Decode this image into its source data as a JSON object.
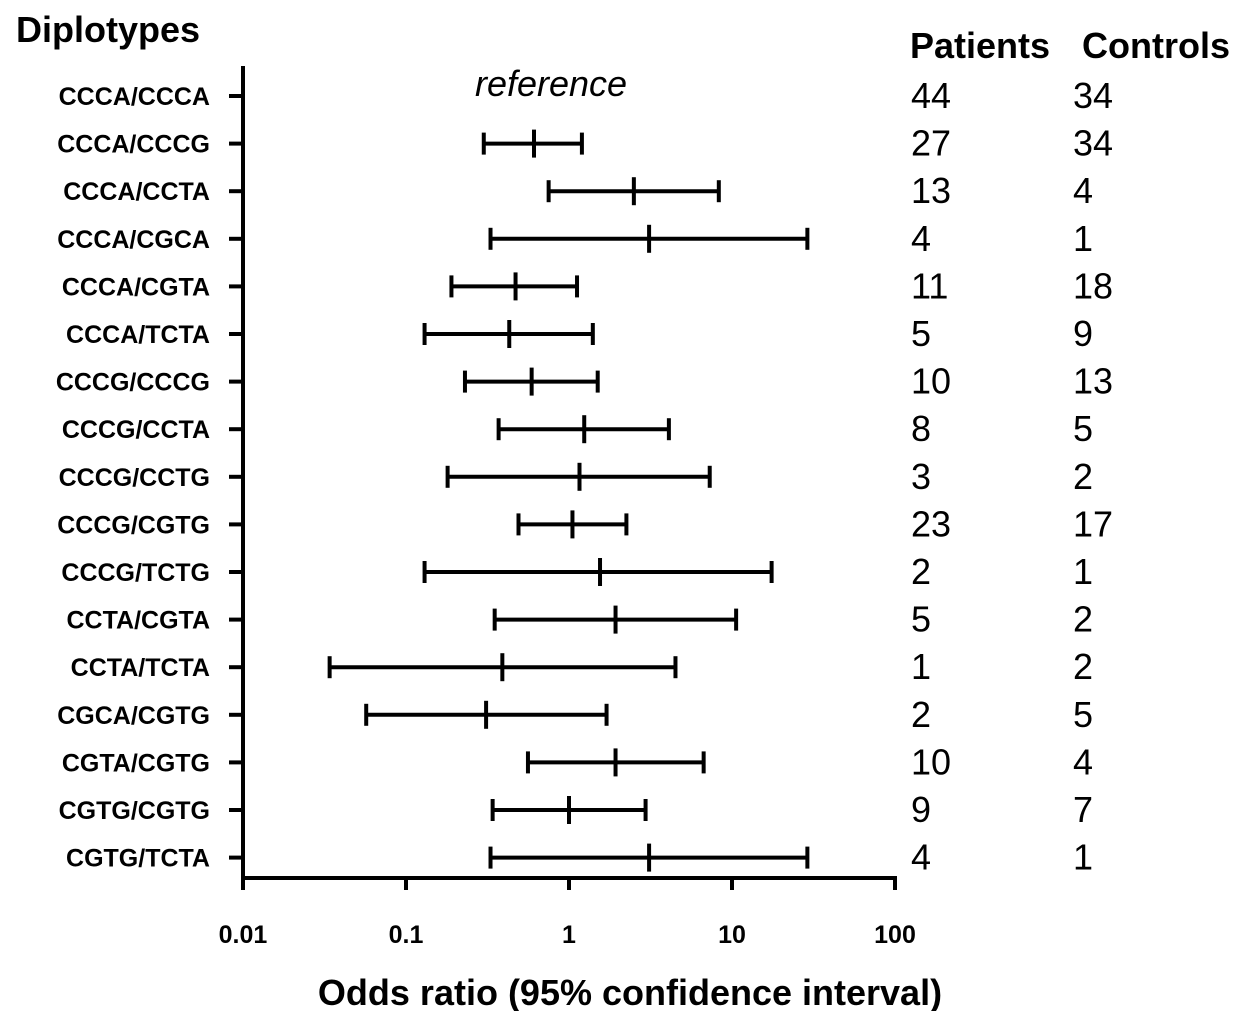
{
  "chart_data": {
    "type": "forest",
    "title": "Diplotypes",
    "xlabel": "Odds ratio (95% confidence interval)",
    "x_scale": "log",
    "xlim": [
      0.01,
      100
    ],
    "x_ticks": [
      "0.01",
      "0.1",
      "1",
      "10",
      "100"
    ],
    "table_headers": {
      "patients": "Patients",
      "controls": "Controls"
    },
    "reference_label": "reference",
    "rows": [
      {
        "label": "CCCA/CCCA",
        "reference": true,
        "patients": "44",
        "controls": "34"
      },
      {
        "label": "CCCA/CCCG",
        "or": 0.61,
        "lower": 0.3,
        "upper": 1.2,
        "patients": "27",
        "controls": "34"
      },
      {
        "label": "CCCA/CCTA",
        "or": 2.5,
        "lower": 0.75,
        "upper": 8.3,
        "patients": "13",
        "controls": "4"
      },
      {
        "label": "CCCA/CGCA",
        "or": 3.1,
        "lower": 0.33,
        "upper": 29,
        "patients": "4",
        "controls": "1"
      },
      {
        "label": "CCCA/CGTA",
        "or": 0.47,
        "lower": 0.19,
        "upper": 1.12,
        "patients": "11",
        "controls": "18"
      },
      {
        "label": "CCCA/TCTA",
        "or": 0.43,
        "lower": 0.13,
        "upper": 1.4,
        "patients": "5",
        "controls": "9"
      },
      {
        "label": "CCCG/CCCG",
        "or": 0.59,
        "lower": 0.23,
        "upper": 1.5,
        "patients": "10",
        "controls": "13"
      },
      {
        "label": "CCCG/CCTA",
        "or": 1.24,
        "lower": 0.37,
        "upper": 4.1,
        "patients": "8",
        "controls": "5"
      },
      {
        "label": "CCCG/CCTG",
        "or": 1.16,
        "lower": 0.18,
        "upper": 7.3,
        "patients": "3",
        "controls": "2"
      },
      {
        "label": "CCCG/CGTG",
        "or": 1.05,
        "lower": 0.49,
        "upper": 2.25,
        "patients": "23",
        "controls": "17"
      },
      {
        "label": "CCCG/TCTG",
        "or": 1.55,
        "lower": 0.13,
        "upper": 17.5,
        "patients": "2",
        "controls": "1"
      },
      {
        "label": "CCTA/CGTA",
        "or": 1.93,
        "lower": 0.35,
        "upper": 10.6,
        "patients": "5",
        "controls": "2"
      },
      {
        "label": "CCTA/TCTA",
        "or": 0.39,
        "lower": 0.034,
        "upper": 4.5,
        "patients": "1",
        "controls": "2"
      },
      {
        "label": "CGCA/CGTG",
        "or": 0.31,
        "lower": 0.057,
        "upper": 1.7,
        "patients": "2",
        "controls": "5"
      },
      {
        "label": "CGTA/CGTG",
        "or": 1.93,
        "lower": 0.56,
        "upper": 6.7,
        "patients": "10",
        "controls": "4"
      },
      {
        "label": "CGTG/CGTG",
        "or": 1.0,
        "lower": 0.34,
        "upper": 2.95,
        "patients": "9",
        "controls": "7"
      },
      {
        "label": "CGTG/TCTA",
        "or": 3.1,
        "lower": 0.33,
        "upper": 29,
        "patients": "4",
        "controls": "1"
      }
    ]
  }
}
